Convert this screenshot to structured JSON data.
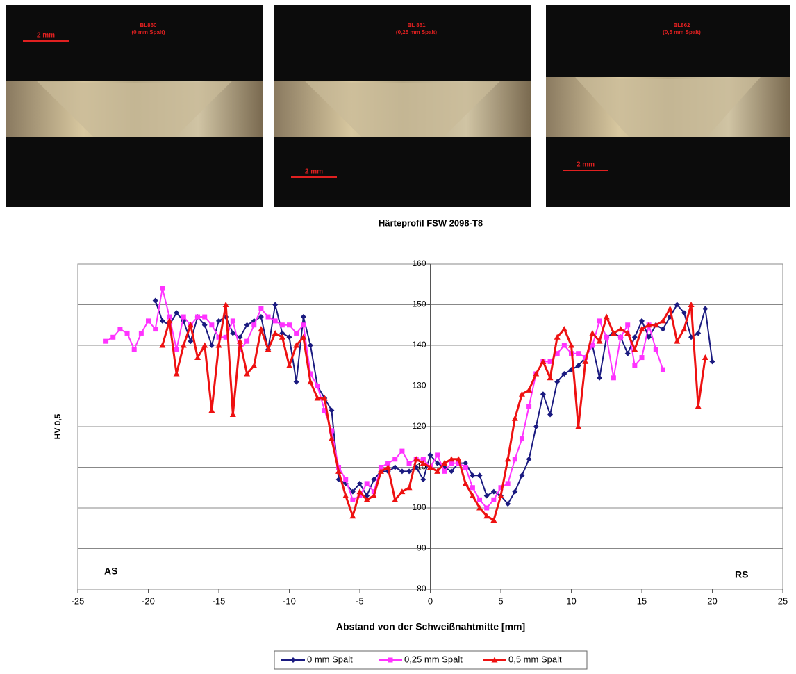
{
  "micrographs": [
    {
      "label": "BL860",
      "sublabel": "(0 mm Spalt)",
      "scale": "2 mm"
    },
    {
      "label": "BL 861",
      "sublabel": "(0,25 mm Spalt)",
      "scale": "2 mm"
    },
    {
      "label": "BL862",
      "sublabel": "(0,5 mm Spalt)",
      "scale": "2 mm"
    }
  ],
  "chart_data": {
    "type": "line",
    "title": "Härteprofil FSW 2098-T8",
    "x_label": "Abstand von der  Schweißnahtmitte [mm]",
    "y_label": "HV 0,5",
    "annotations": [
      "AS",
      "RS"
    ],
    "xlim": [
      -25,
      25
    ],
    "xticks": [
      -25,
      -20,
      -15,
      -10,
      -5,
      0,
      5,
      10,
      15,
      20,
      25
    ],
    "ylim": [
      80,
      160
    ],
    "yticks": [
      80,
      90,
      100,
      110,
      120,
      130,
      140,
      150,
      160
    ],
    "grid": true,
    "legend": "bottom",
    "series": [
      {
        "name": "0 mm Spalt",
        "color": "#1a1a80",
        "marker": "diamond",
        "x": [
          -19.5,
          -19,
          -18.5,
          -18,
          -17.5,
          -17,
          -16.5,
          -16,
          -15.5,
          -15,
          -14.5,
          -14,
          -13.5,
          -13,
          -12.5,
          -12,
          -11.5,
          -11,
          -10.5,
          -10,
          -9.5,
          -9,
          -8.5,
          -8,
          -7.5,
          -7,
          -6.5,
          -6,
          -5.5,
          -5,
          -4.5,
          -4,
          -3.5,
          -3,
          -2.5,
          -2,
          -1.5,
          -1,
          -0.5,
          0,
          0.5,
          1,
          1.5,
          2,
          2.5,
          3,
          3.5,
          4,
          4.5,
          5,
          5.5,
          6,
          6.5,
          7,
          7.5,
          8,
          8.5,
          9,
          9.5,
          10,
          10.5,
          11,
          11.5,
          12,
          12.5,
          13,
          13.5,
          14,
          14.5,
          15,
          15.5,
          16,
          16.5,
          17,
          17.5,
          18,
          18.5,
          19,
          19.5,
          20
        ],
        "values": [
          151,
          146,
          145,
          148,
          146,
          141,
          147,
          145,
          140,
          146,
          147,
          143,
          142,
          145,
          146,
          147,
          139,
          150,
          143,
          142,
          131,
          147,
          140,
          130,
          127,
          124,
          107,
          106,
          104,
          106,
          103,
          107,
          109,
          109,
          110,
          109,
          109,
          110,
          107,
          113,
          111,
          110,
          109,
          111,
          111,
          108,
          108,
          103,
          104,
          103,
          101,
          104,
          108,
          112,
          120,
          128,
          123,
          131,
          133,
          134,
          135,
          137,
          140,
          132,
          142,
          143,
          142,
          138,
          142,
          146,
          142,
          145,
          144,
          147,
          150,
          148,
          142,
          143,
          149,
          136
        ]
      },
      {
        "name": "0,25 mm Spalt",
        "color": "#ff33ff",
        "marker": "square",
        "x": [
          -23,
          -22.5,
          -22,
          -21.5,
          -21,
          -20.5,
          -20,
          -19.5,
          -19,
          -18.5,
          -18,
          -17.5,
          -17,
          -16.5,
          -16,
          -15.5,
          -15,
          -14.5,
          -14,
          -13.5,
          -13,
          -12.5,
          -12,
          -11.5,
          -11,
          -10.5,
          -10,
          -9.5,
          -9,
          -8.5,
          -8,
          -7.5,
          -7,
          -6.5,
          -6,
          -5.5,
          -5,
          -4.5,
          -4,
          -3.5,
          -3,
          -2.5,
          -2,
          -1.5,
          -1,
          -0.5,
          0,
          0.5,
          1,
          1.5,
          2,
          2.5,
          3,
          3.5,
          4,
          4.5,
          5,
          5.5,
          6,
          6.5,
          7,
          7.5,
          8,
          8.5,
          9,
          9.5,
          10,
          10.5,
          11,
          11.5,
          12,
          12.5,
          13,
          13.5,
          14,
          14.5,
          15,
          15.5,
          16,
          16.5
        ],
        "values": [
          141,
          142,
          144,
          143,
          139,
          143,
          146,
          144,
          154,
          147,
          139,
          147,
          145,
          147,
          147,
          145,
          142,
          142,
          146,
          139,
          141,
          145,
          149,
          147,
          146,
          145,
          145,
          143,
          145,
          133,
          130,
          124,
          119,
          110,
          107,
          102,
          103,
          106,
          104,
          110,
          111,
          112,
          114,
          111,
          112,
          112,
          110,
          113,
          109,
          111,
          111,
          110,
          105,
          102,
          100,
          102,
          105,
          106,
          112,
          117,
          125,
          133,
          136,
          136,
          138,
          140,
          138,
          138,
          137,
          140,
          146,
          142,
          132,
          142,
          145,
          135,
          137,
          145,
          139,
          134
        ]
      },
      {
        "name": "0,5 mm Spalt",
        "color": "#ee1111",
        "marker": "triangle",
        "x": [
          -19,
          -18.5,
          -18,
          -17.5,
          -17,
          -16.5,
          -16,
          -15.5,
          -15,
          -14.5,
          -14,
          -13.5,
          -13,
          -12.5,
          -12,
          -11.5,
          -11,
          -10.5,
          -10,
          -9.5,
          -9,
          -8.5,
          -8,
          -7.5,
          -7,
          -6.5,
          -6,
          -5.5,
          -5,
          -4.5,
          -4,
          -3.5,
          -3,
          -2.5,
          -2,
          -1.5,
          -1,
          -0.5,
          0,
          0.5,
          1,
          1.5,
          2,
          2.5,
          3,
          3.5,
          4,
          4.5,
          5,
          5.5,
          6,
          6.5,
          7,
          7.5,
          8,
          8.5,
          9,
          9.5,
          10,
          10.5,
          11,
          11.5,
          12,
          12.5,
          13,
          13.5,
          14,
          14.5,
          15,
          15.5,
          16,
          16.5,
          17,
          17.5,
          18,
          18.5,
          19,
          19.5
        ],
        "values": [
          140,
          146,
          133,
          140,
          145,
          137,
          140,
          124,
          140,
          150,
          123,
          141,
          133,
          135,
          144,
          139,
          143,
          142,
          135,
          140,
          142,
          131,
          127,
          127,
          117,
          109,
          103,
          98,
          104,
          102,
          103,
          109,
          110,
          102,
          104,
          105,
          112,
          111,
          110,
          109,
          111,
          112,
          112,
          106,
          103,
          100,
          98,
          97,
          103,
          112,
          122,
          128,
          129,
          133,
          136,
          132,
          142,
          144,
          140,
          120,
          136,
          143,
          141,
          147,
          143,
          144,
          143,
          139,
          144,
          145,
          145,
          146,
          149,
          141,
          144,
          150,
          125,
          137
        ]
      }
    ]
  }
}
